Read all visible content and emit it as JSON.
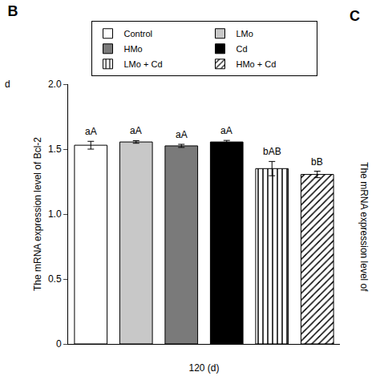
{
  "chart_data": {
    "type": "bar",
    "title": "B",
    "xlabel": "120 (d)",
    "ylabel": "The mRNA expression level of Bcl-2",
    "categories": [
      null
    ],
    "series": [
      {
        "name": "Control",
        "color": "white",
        "values": [
          1.53
        ],
        "errors": [
          0.03
        ],
        "annotations": [
          "aA"
        ]
      },
      {
        "name": "LMo",
        "color": "#c8c8c8",
        "values": [
          1.555
        ],
        "errors": [
          0.01
        ],
        "annotations": [
          "aA"
        ]
      },
      {
        "name": "HMo",
        "color": "#7a7a7a",
        "values": [
          1.525
        ],
        "errors": [
          0.012
        ],
        "annotations": [
          "aA"
        ]
      },
      {
        "name": "Cd",
        "color": "black",
        "values": [
          1.555
        ],
        "errors": [
          0.012
        ],
        "annotations": [
          "aA"
        ]
      },
      {
        "name": "LMo + Cd",
        "color": "white",
        "marker": "vertical_lines",
        "values": [
          1.35
        ],
        "errors": [
          0.055
        ],
        "annotations": [
          "bAB"
        ]
      },
      {
        "name": "HMo + Cd",
        "color": "white",
        "marker": "diagonal_lines",
        "values": [
          1.305
        ],
        "errors": [
          0.025
        ],
        "annotations": [
          "bB"
        ]
      }
    ],
    "ylim": [
      0,
      2.0
    ],
    "yticks": [
      0,
      0.5,
      {
        "value": 1,
        "label": "1.0"
      },
      1.5,
      {
        "value": 2,
        "label": "2.0"
      }
    ],
    "grid": false,
    "legend": "top",
    "tick_labels": "y",
    "annotations": [
      "C",
      "d",
      "The mRNA expression level of"
    ]
  }
}
